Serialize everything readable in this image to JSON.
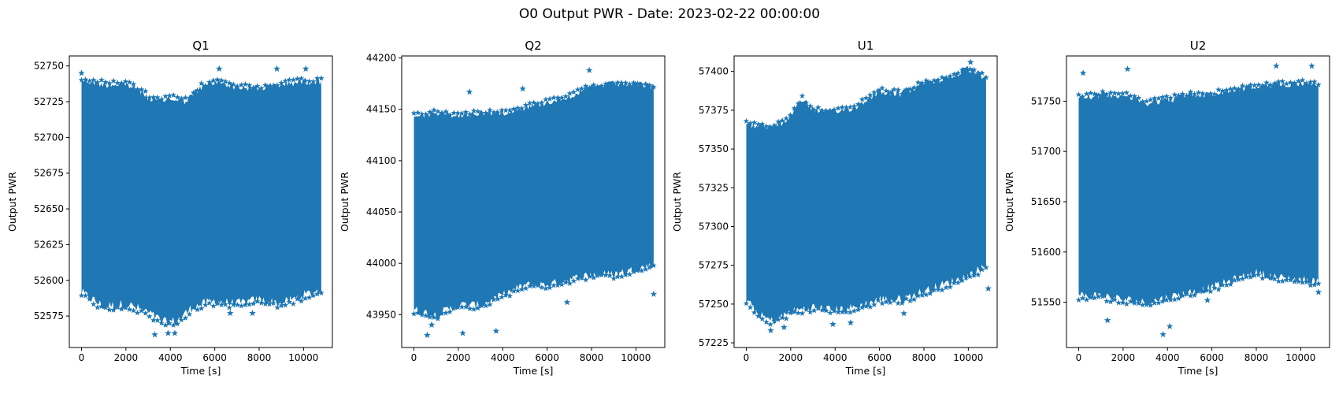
{
  "figure": {
    "title": "O0 Output PWR - Date: 2023-02-22 00:00:00"
  },
  "chart_data": [
    {
      "type": "scatter",
      "title": "Q1",
      "xlabel": "Time [s]",
      "ylabel": "Output PWR",
      "marker": "star",
      "color": "#1f77b4",
      "xlim": [
        -550,
        11300
      ],
      "ylim": [
        52553,
        52757
      ],
      "xticks": [
        0,
        2000,
        4000,
        6000,
        8000,
        10000
      ],
      "yticks": [
        52575,
        52600,
        52625,
        52650,
        52675,
        52700,
        52725,
        52750
      ],
      "x_range": [
        0,
        10800
      ],
      "band_upper": [
        [
          0,
          52743
        ],
        [
          1000,
          52740
        ],
        [
          2000,
          52740
        ],
        [
          2700,
          52735
        ],
        [
          3200,
          52728
        ],
        [
          4000,
          52730
        ],
        [
          4700,
          52728
        ],
        [
          5400,
          52738
        ],
        [
          6200,
          52742
        ],
        [
          7000,
          52738
        ],
        [
          8000,
          52737
        ],
        [
          9000,
          52740
        ],
        [
          10000,
          52742
        ],
        [
          10800,
          52742
        ]
      ],
      "band_lower": [
        [
          0,
          52588
        ],
        [
          1000,
          52578
        ],
        [
          2000,
          52580
        ],
        [
          3000,
          52574
        ],
        [
          3700,
          52567
        ],
        [
          4300,
          52568
        ],
        [
          5000,
          52578
        ],
        [
          6000,
          52582
        ],
        [
          7000,
          52580
        ],
        [
          8000,
          52583
        ],
        [
          9000,
          52580
        ],
        [
          10000,
          52586
        ],
        [
          10800,
          52590
        ]
      ],
      "outliers": [
        [
          0,
          52745
        ],
        [
          6200,
          52748
        ],
        [
          8800,
          52748
        ],
        [
          10100,
          52748
        ],
        [
          3300,
          52562
        ],
        [
          3900,
          52563
        ],
        [
          4200,
          52563
        ],
        [
          6700,
          52577
        ],
        [
          7700,
          52577
        ]
      ]
    },
    {
      "type": "scatter",
      "title": "Q2",
      "xlabel": "Time [s]",
      "ylabel": "Output PWR",
      "marker": "star",
      "color": "#1f77b4",
      "xlim": [
        -550,
        11300
      ],
      "ylim": [
        43918,
        44202
      ],
      "xticks": [
        0,
        2000,
        4000,
        6000,
        8000,
        10000
      ],
      "yticks": [
        43950,
        44000,
        44050,
        44100,
        44150,
        44200
      ],
      "x_range": [
        0,
        10800
      ],
      "band_upper": [
        [
          0,
          44148
        ],
        [
          1000,
          44150
        ],
        [
          2000,
          44147
        ],
        [
          3000,
          44150
        ],
        [
          4000,
          44150
        ],
        [
          5000,
          44155
        ],
        [
          6000,
          44160
        ],
        [
          7000,
          44166
        ],
        [
          8000,
          44175
        ],
        [
          9000,
          44178
        ],
        [
          10000,
          44178
        ],
        [
          10800,
          44175
        ]
      ],
      "band_lower": [
        [
          0,
          43950
        ],
        [
          1000,
          43945
        ],
        [
          2000,
          43955
        ],
        [
          3000,
          43955
        ],
        [
          4000,
          43965
        ],
        [
          5000,
          43975
        ],
        [
          6000,
          43975
        ],
        [
          7000,
          43980
        ],
        [
          8000,
          43985
        ],
        [
          9000,
          43985
        ],
        [
          10000,
          43990
        ],
        [
          10800,
          43995
        ]
      ],
      "outliers": [
        [
          7900,
          44188
        ],
        [
          2500,
          44167
        ],
        [
          4900,
          44170
        ],
        [
          600,
          43930
        ],
        [
          2200,
          43932
        ],
        [
          3700,
          43934
        ],
        [
          800,
          43940
        ],
        [
          6900,
          43962
        ],
        [
          10800,
          43970
        ]
      ]
    },
    {
      "type": "scatter",
      "title": "U1",
      "xlabel": "Time [s]",
      "ylabel": "Output PWR",
      "marker": "star",
      "color": "#1f77b4",
      "xlim": [
        -550,
        11300
      ],
      "ylim": [
        57222,
        57410
      ],
      "xticks": [
        0,
        2000,
        4000,
        6000,
        8000,
        10000
      ],
      "yticks": [
        57225,
        57250,
        57275,
        57300,
        57325,
        57350,
        57375,
        57400
      ],
      "x_range": [
        0,
        10800
      ],
      "band_upper": [
        [
          0,
          57368
        ],
        [
          1000,
          57366
        ],
        [
          1800,
          57370
        ],
        [
          2500,
          57385
        ],
        [
          3000,
          57378
        ],
        [
          4000,
          57376
        ],
        [
          5000,
          57380
        ],
        [
          6000,
          57390
        ],
        [
          7000,
          57388
        ],
        [
          8000,
          57395
        ],
        [
          9000,
          57398
        ],
        [
          10000,
          57404
        ],
        [
          10800,
          57398
        ]
      ],
      "band_lower": [
        [
          0,
          57250
        ],
        [
          600,
          57240
        ],
        [
          1200,
          57236
        ],
        [
          2000,
          57242
        ],
        [
          3000,
          57245
        ],
        [
          4000,
          57243
        ],
        [
          5000,
          57245
        ],
        [
          6000,
          57250
        ],
        [
          7000,
          57250
        ],
        [
          8000,
          57255
        ],
        [
          9000,
          57260
        ],
        [
          10000,
          57265
        ],
        [
          10800,
          57272
        ]
      ],
      "outliers": [
        [
          10100,
          57406
        ],
        [
          1100,
          57233
        ],
        [
          1700,
          57235
        ],
        [
          3900,
          57237
        ],
        [
          4700,
          57238
        ],
        [
          7100,
          57244
        ],
        [
          10900,
          57260
        ]
      ]
    },
    {
      "type": "scatter",
      "title": "U2",
      "xlabel": "Time [s]",
      "ylabel": "Output PWR",
      "marker": "star",
      "color": "#1f77b4",
      "xlim": [
        -550,
        11300
      ],
      "ylim": [
        51505,
        51795
      ],
      "xticks": [
        0,
        2000,
        4000,
        6000,
        8000,
        10000
      ],
      "yticks": [
        51550,
        51600,
        51650,
        51700,
        51750
      ],
      "x_range": [
        0,
        10800
      ],
      "band_upper": [
        [
          0,
          51758
        ],
        [
          1000,
          51760
        ],
        [
          2000,
          51760
        ],
        [
          3000,
          51752
        ],
        [
          4000,
          51755
        ],
        [
          5000,
          51760
        ],
        [
          6000,
          51760
        ],
        [
          7000,
          51765
        ],
        [
          8000,
          51768
        ],
        [
          9000,
          51770
        ],
        [
          10000,
          51772
        ],
        [
          10800,
          51770
        ]
      ],
      "band_lower": [
        [
          0,
          51552
        ],
        [
          1000,
          51552
        ],
        [
          2000,
          51548
        ],
        [
          3000,
          51545
        ],
        [
          4000,
          51550
        ],
        [
          5000,
          51555
        ],
        [
          6000,
          51560
        ],
        [
          7000,
          51568
        ],
        [
          8000,
          51575
        ],
        [
          9000,
          51570
        ],
        [
          10000,
          51568
        ],
        [
          10800,
          51565
        ]
      ],
      "outliers": [
        [
          200,
          51778
        ],
        [
          2200,
          51782
        ],
        [
          8900,
          51785
        ],
        [
          10500,
          51785
        ],
        [
          1300,
          51532
        ],
        [
          3800,
          51518
        ],
        [
          4100,
          51526
        ],
        [
          5800,
          51552
        ],
        [
          10800,
          51560
        ]
      ]
    }
  ]
}
